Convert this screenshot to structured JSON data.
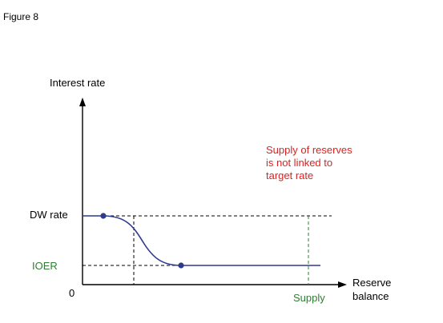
{
  "figure_label": "Figure 8",
  "y_axis_label": "Interest rate",
  "x_axis_label": [
    "Reserve",
    "balance"
  ],
  "origin_label": "0",
  "dw_rate_label": "DW rate",
  "ioer_label": "IOER",
  "supply_label": "Supply",
  "annotation": [
    "Supply of reserves",
    "is not linked to",
    "target rate"
  ],
  "colors": {
    "curve": "#2e3a8c",
    "point": "#2e3a8c",
    "ioer_text": "#2e7d32",
    "supply": "#2e7d32",
    "annotation": "#e02020",
    "axis": "#000000"
  }
}
